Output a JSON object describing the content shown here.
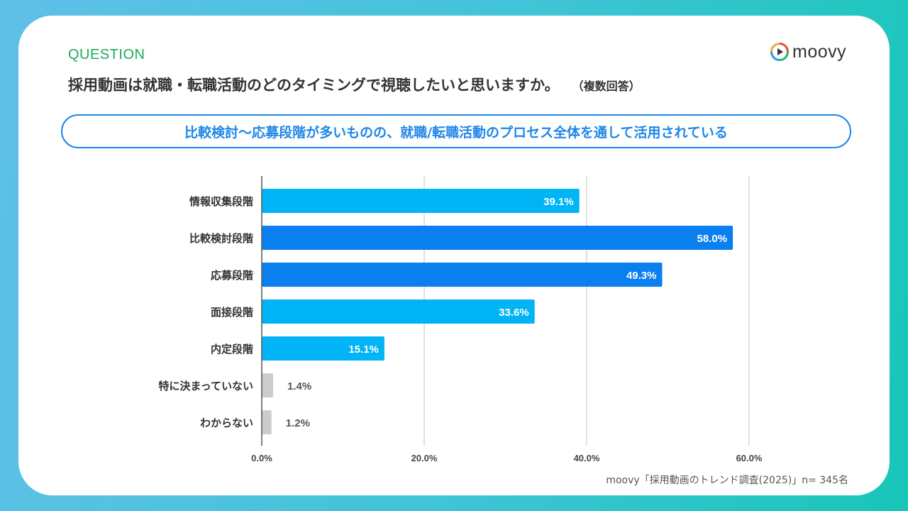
{
  "question": {
    "label": "QUESTION",
    "text": "採用動画は就職・転職活動のどのタイミングで視聴したいと思いますか。",
    "note": "（複数回答）"
  },
  "logo": {
    "text": "moovy",
    "icon": "play-circle-icon"
  },
  "summary": "比較検討〜応募段階が多いものの、就職/転職活動のプロセス全体を通して活用されている",
  "source": "moovy「採用動画のトレンド調査(2025)」n= 345名",
  "colors": {
    "accent": "#1f86e8",
    "question": "#1aab5a",
    "bar_light": "#00b4f5",
    "bar_dark": "#0a7ff0",
    "bar_grey": "#cccccc"
  },
  "chart_data": {
    "type": "bar",
    "orientation": "horizontal",
    "categories": [
      "情報収集段階",
      "比較検討段階",
      "応募段階",
      "面接段階",
      "内定段階",
      "特に決まっていない",
      "わからない"
    ],
    "values": [
      39.1,
      58.0,
      49.3,
      33.6,
      15.1,
      1.4,
      1.2
    ],
    "value_labels": [
      "39.1%",
      "58.0%",
      "49.3%",
      "33.6%",
      "15.1%",
      "1.4%",
      "1.2%"
    ],
    "highlight": [
      false,
      true,
      true,
      false,
      false,
      false,
      false
    ],
    "xlim": [
      0,
      60
    ],
    "ticks": [
      0,
      20,
      40,
      60
    ],
    "tick_labels": [
      "0.0%",
      "20.0%",
      "40.0%",
      "60.0%"
    ],
    "grid": true
  }
}
